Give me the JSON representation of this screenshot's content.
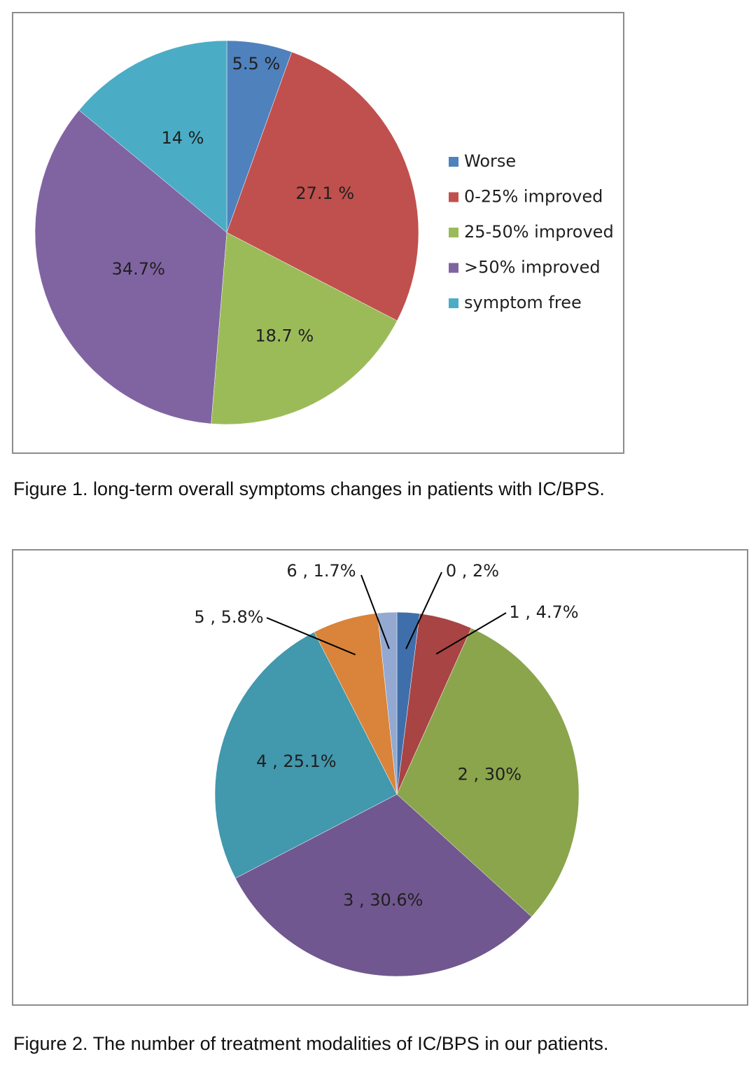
{
  "figure1": {
    "caption": "Figure 1. long-term overall symptoms changes in patients with IC/BPS."
  },
  "figure2": {
    "caption": "Figure 2. The number of treatment modalities of IC/BPS in our patients."
  },
  "chart_data": [
    {
      "type": "pie",
      "title": "",
      "legend_position": "right",
      "categories": [
        "Worse",
        "0-25% improved",
        "25-50% improved",
        ">50% improved",
        "symptom free"
      ],
      "values": [
        5.5,
        27.1,
        18.7,
        34.7,
        14
      ],
      "data_labels": [
        "5.5 %",
        "27.1 %",
        "18.7 %",
        "34.7%",
        "14 %"
      ],
      "colors": [
        "#4f81bd",
        "#c0504d",
        "#9bbb59",
        "#8064a2",
        "#4bacc6"
      ]
    },
    {
      "type": "pie",
      "title": "",
      "legend_position": "none",
      "categories": [
        "0",
        "1",
        "2",
        "3",
        "4",
        "5",
        "6"
      ],
      "values": [
        2,
        4.7,
        30,
        30.6,
        25.1,
        5.8,
        1.7
      ],
      "data_labels": [
        "0 , 2%",
        "1 , 4.7%",
        "2 , 30%",
        "3 , 30.6%",
        "4 , 25.1%",
        "5 , 5.8%",
        "6 , 1.7%"
      ],
      "colors": [
        "#3f6faa",
        "#a84444",
        "#8aa54b",
        "#71578f",
        "#4298ad",
        "#d9843a",
        "#93a9d2"
      ]
    }
  ]
}
